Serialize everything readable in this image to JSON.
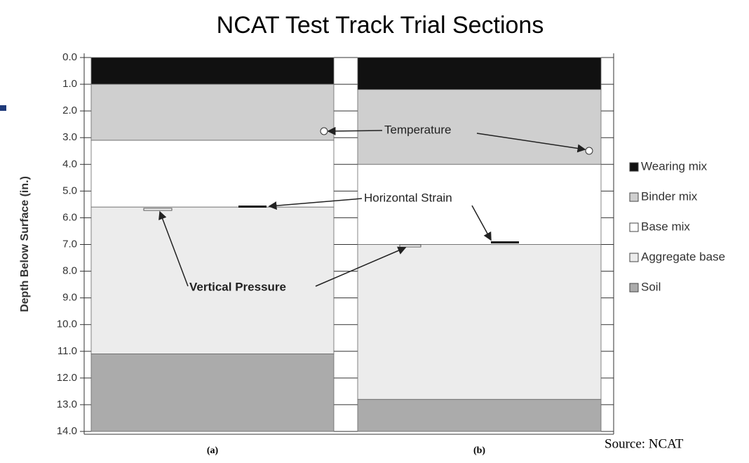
{
  "chart_data": {
    "type": "stacked_bar",
    "title": "NCAT Test Track Trial Sections",
    "y_label": "Depth Below Surface (in.)",
    "source": "Source: NCAT",
    "categories": [
      "(a)",
      "(b)"
    ],
    "ylim": [
      0,
      14
    ],
    "y_inverted": true,
    "yticks": [
      {
        "value": 0,
        "label": "0.0"
      },
      {
        "value": 1,
        "label": "1.0"
      },
      {
        "value": 2,
        "label": "2.0"
      },
      {
        "value": 3,
        "label": "3.0"
      },
      {
        "value": 4,
        "label": "4.0"
      },
      {
        "value": 5,
        "label": "5.0"
      },
      {
        "value": 6,
        "label": "6.0"
      },
      {
        "value": 7,
        "label": "7.0"
      },
      {
        "value": 8,
        "label": "8.0"
      },
      {
        "value": 9,
        "label": "9.0"
      },
      {
        "value": 10,
        "label": "10.0"
      },
      {
        "value": 11,
        "label": "11.0"
      },
      {
        "value": 12,
        "label": "12.0"
      },
      {
        "value": 13,
        "label": "13.0"
      },
      {
        "value": 14,
        "label": "14.0"
      }
    ],
    "series": [
      {
        "name": "Wearing mix",
        "color": "#111111",
        "values": [
          1.0,
          1.2
        ]
      },
      {
        "name": "Binder mix",
        "color": "#cfcfcf",
        "values": [
          2.1,
          2.8
        ]
      },
      {
        "name": "Base mix",
        "color": "#ffffff",
        "values": [
          2.5,
          3.0
        ]
      },
      {
        "name": "Aggregate base",
        "color": "#ececec",
        "values": [
          5.5,
          5.8
        ]
      },
      {
        "name": "Soil",
        "color": "#ababab",
        "values": [
          2.9,
          1.2
        ]
      }
    ],
    "legend": "right",
    "annotations": [
      "Temperature",
      "Horizontal Strain",
      "Vertical Pressure"
    ]
  }
}
